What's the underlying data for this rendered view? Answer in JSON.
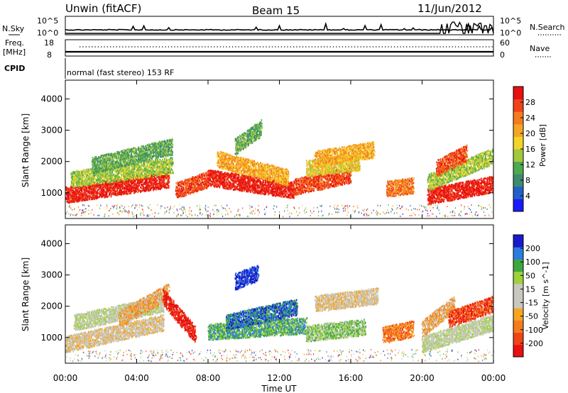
{
  "header": {
    "station": "Unwin (fitACF)",
    "beam": "Beam 15",
    "date": "11/Jun/2012"
  },
  "strips": {
    "nsky_label": "N.Sky",
    "nsearch_label": "N.Search",
    "nsky_ticks": [
      "10^5",
      "10^0"
    ],
    "nsearch_ticks": [
      "10^5",
      "10^0"
    ],
    "freq_label_1": "Freq.",
    "freq_label_2": "[MHz]",
    "freq_ticks": [
      "18",
      "8"
    ],
    "nave_label": "Nave",
    "nave_ticks": [
      "60",
      "0"
    ],
    "cpid_label": "CPID",
    "cpid_text": "normal (fast stereo) 153 RF"
  },
  "axes": {
    "ylabel": "Slant Range [km]",
    "xlabel": "Time UT",
    "yticks": [
      "4000",
      "3000",
      "2000",
      "1000"
    ],
    "xticks": [
      "00:00",
      "04:00",
      "08:00",
      "12:00",
      "16:00",
      "20:00",
      "00:00"
    ]
  },
  "chart_data": [
    {
      "type": "heatmap",
      "name": "power",
      "colorbar_label": "Power [dB]",
      "colorbar_ticks": [
        "28",
        "24",
        "20",
        "16",
        "12",
        "8",
        "4"
      ],
      "xlim_hours": [
        0,
        24
      ],
      "ylim_km": [
        180,
        4600
      ],
      "colors": [
        "#1a1aff",
        "#2060c8",
        "#3e8a6e",
        "#4daa4d",
        "#a4c83c",
        "#f2d52a",
        "#f5a524",
        "#f57b1f",
        "#f04418",
        "#e81010"
      ],
      "bands": [
        {
          "t0": 0.0,
          "t1": 5.8,
          "r_start": 950,
          "r_end": 1450,
          "level": 9
        },
        {
          "t0": 0.3,
          "t1": 6.0,
          "r_start": 1450,
          "r_end": 1900,
          "level": 4
        },
        {
          "t0": 1.5,
          "t1": 6.0,
          "r_start": 1900,
          "r_end": 2500,
          "level": 3
        },
        {
          "t0": 6.2,
          "t1": 8.0,
          "r_start": 1100,
          "r_end": 1450,
          "level": 8
        },
        {
          "t0": 8.0,
          "t1": 12.8,
          "r_start": 1500,
          "r_end": 1100,
          "level": 9
        },
        {
          "t0": 8.5,
          "t1": 12.5,
          "r_start": 2100,
          "r_end": 1500,
          "level": 6
        },
        {
          "t0": 9.5,
          "t1": 11.0,
          "r_start": 2500,
          "r_end": 3100,
          "level": 3
        },
        {
          "t0": 12.8,
          "t1": 16.0,
          "r_start": 1200,
          "r_end": 1600,
          "level": 8
        },
        {
          "t0": 13.5,
          "t1": 16.5,
          "r_start": 1800,
          "r_end": 2000,
          "level": 5
        },
        {
          "t0": 14.0,
          "t1": 17.3,
          "r_start": 2100,
          "r_end": 2400,
          "level": 6
        },
        {
          "t0": 18.0,
          "t1": 19.5,
          "r_start": 1150,
          "r_end": 1250,
          "level": 7
        },
        {
          "t0": 20.3,
          "t1": 24.0,
          "r_start": 900,
          "r_end": 1300,
          "level": 9
        },
        {
          "t0": 20.3,
          "t1": 24.0,
          "r_start": 1350,
          "r_end": 2200,
          "level": 4
        },
        {
          "t0": 20.8,
          "t1": 22.5,
          "r_start": 1800,
          "r_end": 2300,
          "level": 8
        }
      ]
    },
    {
      "type": "heatmap",
      "name": "velocity",
      "colorbar_label": "Velocity [m s^-1]",
      "colorbar_ticks": [
        "200",
        "100",
        "50",
        "15",
        "-15",
        "-50",
        "-100",
        "-200"
      ],
      "xlim_hours": [
        0,
        24
      ],
      "ylim_km": [
        180,
        4600
      ],
      "colors": [
        "#e81010",
        "#f04418",
        "#f57b1f",
        "#f5a524",
        "#c8c8be",
        "#c8c8be",
        "#9ed23c",
        "#3ea83e",
        "#2a7de0",
        "#1a1acc"
      ],
      "bands": [
        {
          "t0": 0.0,
          "t1": 5.5,
          "r_start": 800,
          "r_end": 1500,
          "level": 4
        },
        {
          "t0": 0.5,
          "t1": 5.5,
          "r_start": 1500,
          "r_end": 2100,
          "level": 5
        },
        {
          "t0": 3.0,
          "t1": 5.8,
          "r_start": 1600,
          "r_end": 2500,
          "level": 3
        },
        {
          "t0": 5.5,
          "t1": 7.3,
          "r_start": 2300,
          "r_end": 1100,
          "level": 0
        },
        {
          "t0": 8.0,
          "t1": 13.5,
          "r_start": 1200,
          "r_end": 1400,
          "level": 7
        },
        {
          "t0": 9.0,
          "t1": 13.0,
          "r_start": 1500,
          "r_end": 2000,
          "level": 8
        },
        {
          "t0": 9.5,
          "t1": 10.8,
          "r_start": 2800,
          "r_end": 3100,
          "level": 9
        },
        {
          "t0": 13.5,
          "t1": 16.8,
          "r_start": 1150,
          "r_end": 1350,
          "level": 6
        },
        {
          "t0": 14.0,
          "t1": 17.5,
          "r_start": 2100,
          "r_end": 2350,
          "level": 4
        },
        {
          "t0": 17.8,
          "t1": 19.5,
          "r_start": 1100,
          "r_end": 1300,
          "level": 2
        },
        {
          "t0": 20.0,
          "t1": 24.0,
          "r_start": 800,
          "r_end": 1500,
          "level": 5
        },
        {
          "t0": 20.0,
          "t1": 21.8,
          "r_start": 1300,
          "r_end": 2100,
          "level": 3
        },
        {
          "t0": 21.5,
          "t1": 24.0,
          "r_start": 1600,
          "r_end": 2100,
          "level": 1
        }
      ]
    }
  ]
}
